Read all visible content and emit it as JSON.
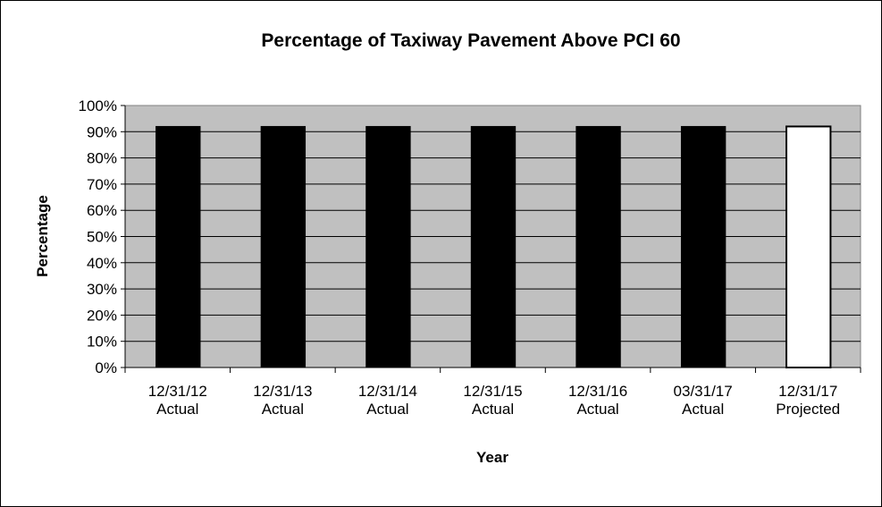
{
  "chart_data": {
    "type": "bar",
    "title": "Percentage of Taxiway Pavement Above PCI 60",
    "xlabel": "Year",
    "ylabel": "Percentage",
    "ylim": [
      0,
      100
    ],
    "y_ticks": [
      "0%",
      "10%",
      "20%",
      "30%",
      "40%",
      "50%",
      "60%",
      "70%",
      "80%",
      "90%",
      "100%"
    ],
    "categories": [
      [
        "12/31/12",
        "Actual"
      ],
      [
        "12/31/13",
        "Actual"
      ],
      [
        "12/31/14",
        "Actual"
      ],
      [
        "12/31/15",
        "Actual"
      ],
      [
        "12/31/16",
        "Actual"
      ],
      [
        "03/31/17",
        "Actual"
      ],
      [
        "12/31/17",
        "Projected"
      ]
    ],
    "values": [
      92,
      92,
      92,
      92,
      92,
      92,
      92
    ],
    "bar_fills": [
      "#000000",
      "#000000",
      "#000000",
      "#000000",
      "#000000",
      "#000000",
      "#ffffff"
    ],
    "plot_background": "#c0c0c0",
    "gridlines": true,
    "legend": "none"
  }
}
